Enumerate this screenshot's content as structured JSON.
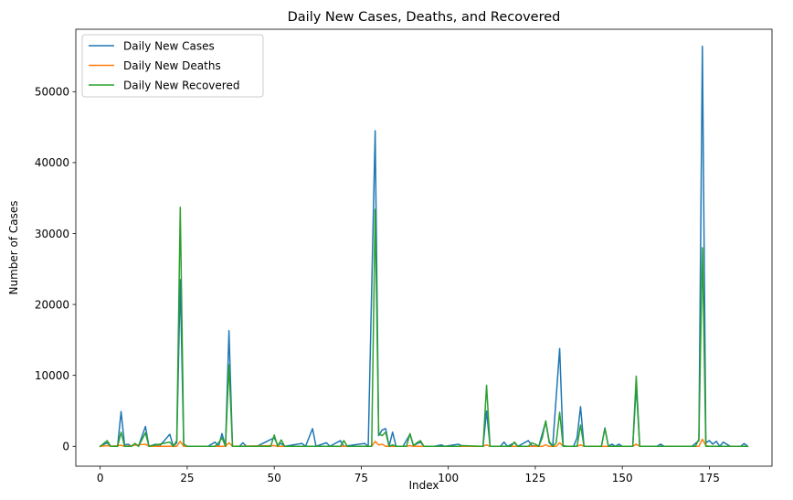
{
  "chart_data": {
    "type": "line",
    "title": "Daily New Cases, Deaths, and Recovered",
    "xlabel": "Index",
    "ylabel": "Number of Cases",
    "xlim": [
      -7,
      193
    ],
    "ylim": [
      -2800,
      58800
    ],
    "xticks": [
      0,
      25,
      50,
      75,
      100,
      125,
      150,
      175
    ],
    "yticks": [
      0,
      10000,
      20000,
      30000,
      40000,
      50000
    ],
    "grid": false,
    "legend": "top-left",
    "series": [
      {
        "name": "Daily New Cases",
        "color": "#1f77b4",
        "points": [
          [
            0,
            0
          ],
          [
            2,
            500
          ],
          [
            3,
            0
          ],
          [
            5,
            0
          ],
          [
            6,
            4900
          ],
          [
            7,
            200
          ],
          [
            8,
            300
          ],
          [
            9,
            0
          ],
          [
            10,
            400
          ],
          [
            11,
            0
          ],
          [
            13,
            2800
          ],
          [
            14,
            0
          ],
          [
            16,
            300
          ],
          [
            17,
            0
          ],
          [
            20,
            1700
          ],
          [
            21,
            0
          ],
          [
            22,
            500
          ],
          [
            23,
            23500
          ],
          [
            24,
            0
          ],
          [
            31,
            0
          ],
          [
            33,
            600
          ],
          [
            34,
            0
          ],
          [
            35,
            1800
          ],
          [
            36,
            0
          ],
          [
            37,
            16300
          ],
          [
            38,
            0
          ],
          [
            40,
            0
          ],
          [
            41,
            500
          ],
          [
            42,
            0
          ],
          [
            45,
            0
          ],
          [
            50,
            1200
          ],
          [
            51,
            200
          ],
          [
            52,
            400
          ],
          [
            53,
            0
          ],
          [
            58,
            400
          ],
          [
            59,
            0
          ],
          [
            61,
            2500
          ],
          [
            62,
            0
          ],
          [
            65,
            500
          ],
          [
            66,
            0
          ],
          [
            69,
            800
          ],
          [
            70,
            0
          ],
          [
            76,
            400
          ],
          [
            77,
            0
          ],
          [
            79,
            44500
          ],
          [
            80,
            1500
          ],
          [
            81,
            2300
          ],
          [
            82,
            2500
          ],
          [
            83,
            0
          ],
          [
            84,
            2000
          ],
          [
            85,
            0
          ],
          [
            87,
            0
          ],
          [
            89,
            1700
          ],
          [
            90,
            100
          ],
          [
            92,
            600
          ],
          [
            93,
            0
          ],
          [
            96,
            0
          ],
          [
            98,
            200
          ],
          [
            99,
            0
          ],
          [
            103,
            300
          ],
          [
            104,
            0
          ],
          [
            110,
            0
          ],
          [
            111,
            5000
          ],
          [
            112,
            0
          ],
          [
            115,
            0
          ],
          [
            116,
            600
          ],
          [
            117,
            0
          ],
          [
            119,
            500
          ],
          [
            120,
            0
          ],
          [
            123,
            800
          ],
          [
            124,
            100
          ],
          [
            126,
            0
          ],
          [
            128,
            3500
          ],
          [
            129,
            500
          ],
          [
            130,
            0
          ],
          [
            132,
            13800
          ],
          [
            133,
            100
          ],
          [
            134,
            0
          ],
          [
            136,
            0
          ],
          [
            137,
            1200
          ],
          [
            138,
            5600
          ],
          [
            139,
            0
          ],
          [
            144,
            0
          ],
          [
            145,
            2600
          ],
          [
            146,
            0
          ],
          [
            147,
            300
          ],
          [
            148,
            0
          ],
          [
            149,
            300
          ],
          [
            150,
            0
          ],
          [
            153,
            0
          ],
          [
            154,
            8500
          ],
          [
            155,
            0
          ],
          [
            160,
            0
          ],
          [
            161,
            300
          ],
          [
            162,
            0
          ],
          [
            170,
            0
          ],
          [
            172,
            800
          ],
          [
            173,
            56400
          ],
          [
            174,
            500
          ],
          [
            175,
            800
          ],
          [
            176,
            300
          ],
          [
            177,
            700
          ],
          [
            178,
            0
          ],
          [
            179,
            600
          ],
          [
            180,
            300
          ],
          [
            181,
            0
          ],
          [
            184,
            0
          ],
          [
            185,
            400
          ],
          [
            186,
            0
          ]
        ]
      },
      {
        "name": "Daily New Deaths",
        "color": "#ff7f0e",
        "points": [
          [
            0,
            0
          ],
          [
            2,
            100
          ],
          [
            3,
            0
          ],
          [
            6,
            150
          ],
          [
            7,
            0
          ],
          [
            13,
            300
          ],
          [
            14,
            0
          ],
          [
            22,
            0
          ],
          [
            23,
            700
          ],
          [
            24,
            0
          ],
          [
            36,
            0
          ],
          [
            37,
            500
          ],
          [
            38,
            0
          ],
          [
            50,
            100
          ],
          [
            51,
            0
          ],
          [
            78,
            0
          ],
          [
            79,
            700
          ],
          [
            80,
            200
          ],
          [
            81,
            300
          ],
          [
            82,
            0
          ],
          [
            88,
            0
          ],
          [
            89,
            100
          ],
          [
            90,
            0
          ],
          [
            110,
            0
          ],
          [
            111,
            200
          ],
          [
            112,
            0
          ],
          [
            127,
            0
          ],
          [
            128,
            200
          ],
          [
            129,
            0
          ],
          [
            131,
            0
          ],
          [
            132,
            500
          ],
          [
            133,
            0
          ],
          [
            137,
            0
          ],
          [
            138,
            200
          ],
          [
            139,
            0
          ],
          [
            153,
            0
          ],
          [
            154,
            300
          ],
          [
            155,
            0
          ],
          [
            172,
            0
          ],
          [
            173,
            1000
          ],
          [
            174,
            100
          ],
          [
            175,
            0
          ],
          [
            186,
            0
          ]
        ]
      },
      {
        "name": "Daily New Recovered",
        "color": "#2ca02c",
        "points": [
          [
            0,
            0
          ],
          [
            2,
            800
          ],
          [
            3,
            0
          ],
          [
            5,
            0
          ],
          [
            6,
            2000
          ],
          [
            7,
            0
          ],
          [
            9,
            0
          ],
          [
            10,
            400
          ],
          [
            11,
            0
          ],
          [
            13,
            1900
          ],
          [
            14,
            0
          ],
          [
            20,
            600
          ],
          [
            21,
            0
          ],
          [
            22,
            800
          ],
          [
            23,
            33700
          ],
          [
            24,
            300
          ],
          [
            25,
            0
          ],
          [
            33,
            0
          ],
          [
            34,
            500
          ],
          [
            35,
            1200
          ],
          [
            36,
            0
          ],
          [
            37,
            11500
          ],
          [
            38,
            0
          ],
          [
            49,
            0
          ],
          [
            50,
            1600
          ],
          [
            51,
            0
          ],
          [
            52,
            900
          ],
          [
            53,
            0
          ],
          [
            69,
            0
          ],
          [
            70,
            800
          ],
          [
            71,
            0
          ],
          [
            78,
            0
          ],
          [
            79,
            33400
          ],
          [
            80,
            1800
          ],
          [
            81,
            1500
          ],
          [
            82,
            2000
          ],
          [
            83,
            0
          ],
          [
            84,
            200
          ],
          [
            85,
            0
          ],
          [
            88,
            0
          ],
          [
            89,
            1800
          ],
          [
            90,
            100
          ],
          [
            91,
            500
          ],
          [
            92,
            800
          ],
          [
            93,
            0
          ],
          [
            103,
            0
          ],
          [
            104,
            100
          ],
          [
            110,
            0
          ],
          [
            111,
            8600
          ],
          [
            112,
            0
          ],
          [
            118,
            0
          ],
          [
            119,
            600
          ],
          [
            120,
            0
          ],
          [
            123,
            0
          ],
          [
            124,
            500
          ],
          [
            125,
            300
          ],
          [
            126,
            0
          ],
          [
            127,
            1200
          ],
          [
            128,
            3600
          ],
          [
            129,
            700
          ],
          [
            130,
            0
          ],
          [
            131,
            500
          ],
          [
            132,
            4800
          ],
          [
            133,
            0
          ],
          [
            137,
            0
          ],
          [
            138,
            3000
          ],
          [
            139,
            0
          ],
          [
            144,
            0
          ],
          [
            145,
            2500
          ],
          [
            146,
            0
          ],
          [
            153,
            0
          ],
          [
            154,
            9900
          ],
          [
            155,
            0
          ],
          [
            171,
            0
          ],
          [
            172,
            1000
          ],
          [
            173,
            28000
          ],
          [
            174,
            0
          ],
          [
            186,
            0
          ]
        ]
      }
    ]
  }
}
